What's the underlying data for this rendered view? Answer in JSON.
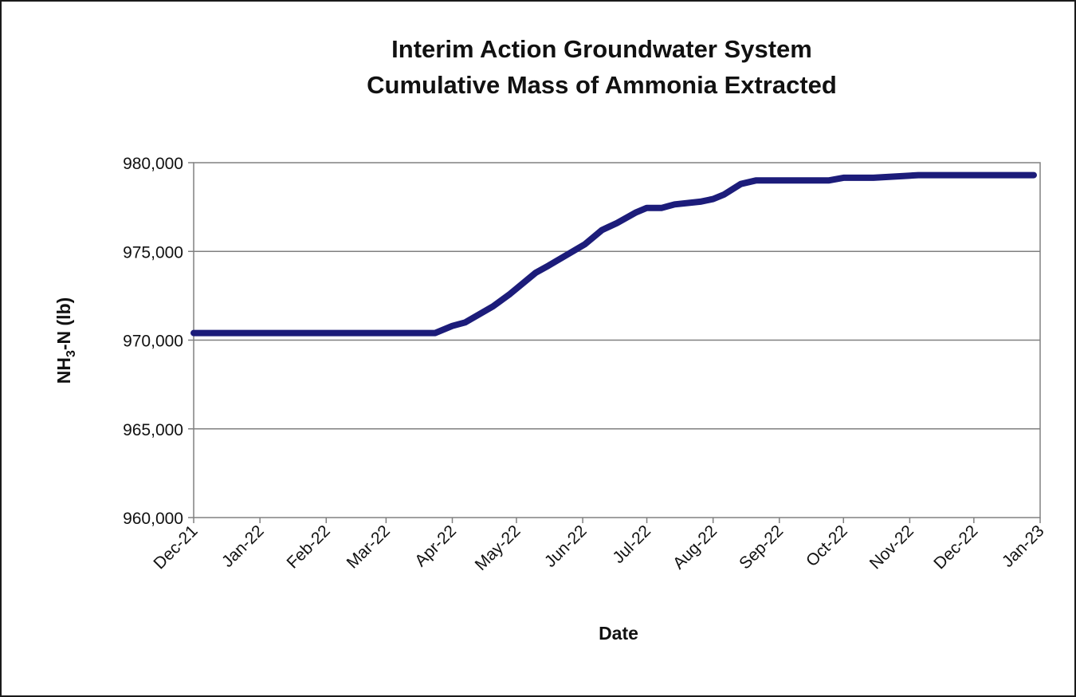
{
  "chart_data": {
    "type": "line",
    "title": "Interim Action Groundwater System",
    "subtitle": "Cumulative Mass of Ammonia Extracted",
    "xlabel": "Date",
    "ylabel": {
      "prefix": "NH",
      "subscript": "3",
      "suffix": "-N  (lb)"
    },
    "ylim": [
      960000,
      980000
    ],
    "yticks": [
      {
        "value": 960000,
        "label": "960,000"
      },
      {
        "value": 965000,
        "label": "965,000"
      },
      {
        "value": 970000,
        "label": "970,000"
      },
      {
        "value": 975000,
        "label": "975,000"
      },
      {
        "value": 980000,
        "label": "980,000"
      }
    ],
    "xticks": [
      {
        "date": "2021-12-01",
        "label": "Dec-21"
      },
      {
        "date": "2022-01-01",
        "label": "Jan-22"
      },
      {
        "date": "2022-02-01",
        "label": "Feb-22"
      },
      {
        "date": "2022-03-01",
        "label": "Mar-22"
      },
      {
        "date": "2022-04-01",
        "label": "Apr-22"
      },
      {
        "date": "2022-05-01",
        "label": "May-22"
      },
      {
        "date": "2022-06-01",
        "label": "Jun-22"
      },
      {
        "date": "2022-07-01",
        "label": "Jul-22"
      },
      {
        "date": "2022-08-01",
        "label": "Aug-22"
      },
      {
        "date": "2022-09-01",
        "label": "Sep-22"
      },
      {
        "date": "2022-10-01",
        "label": "Oct-22"
      },
      {
        "date": "2022-11-01",
        "label": "Nov-22"
      },
      {
        "date": "2022-12-01",
        "label": "Dec-22"
      },
      {
        "date": "2023-01-01",
        "label": "Jan-23"
      }
    ],
    "xlim": [
      "2021-12-01",
      "2023-01-01"
    ],
    "grid": "horizontal",
    "series": [
      {
        "color": "#1c1c7a",
        "points": [
          {
            "x": "2021-12-01",
            "y": 970400
          },
          {
            "x": "2022-01-01",
            "y": 970400
          },
          {
            "x": "2022-02-01",
            "y": 970400
          },
          {
            "x": "2022-03-01",
            "y": 970400
          },
          {
            "x": "2022-03-24",
            "y": 970400
          },
          {
            "x": "2022-04-01",
            "y": 970800
          },
          {
            "x": "2022-04-07",
            "y": 971000
          },
          {
            "x": "2022-04-20",
            "y": 971900
          },
          {
            "x": "2022-04-28",
            "y": 972600
          },
          {
            "x": "2022-05-10",
            "y": 973800
          },
          {
            "x": "2022-05-16",
            "y": 974200
          },
          {
            "x": "2022-06-02",
            "y": 975400
          },
          {
            "x": "2022-06-10",
            "y": 976200
          },
          {
            "x": "2022-06-17",
            "y": 976600
          },
          {
            "x": "2022-06-26",
            "y": 977200
          },
          {
            "x": "2022-07-01",
            "y": 977450
          },
          {
            "x": "2022-07-08",
            "y": 977450
          },
          {
            "x": "2022-07-14",
            "y": 977650
          },
          {
            "x": "2022-07-26",
            "y": 977800
          },
          {
            "x": "2022-08-01",
            "y": 977950
          },
          {
            "x": "2022-08-06",
            "y": 978200
          },
          {
            "x": "2022-08-14",
            "y": 978800
          },
          {
            "x": "2022-08-21",
            "y": 979000
          },
          {
            "x": "2022-09-01",
            "y": 979000
          },
          {
            "x": "2022-09-24",
            "y": 979000
          },
          {
            "x": "2022-10-01",
            "y": 979150
          },
          {
            "x": "2022-10-15",
            "y": 979150
          },
          {
            "x": "2022-10-29",
            "y": 979250
          },
          {
            "x": "2022-11-05",
            "y": 979300
          },
          {
            "x": "2022-12-01",
            "y": 979300
          },
          {
            "x": "2022-12-29",
            "y": 979300
          }
        ]
      }
    ]
  }
}
